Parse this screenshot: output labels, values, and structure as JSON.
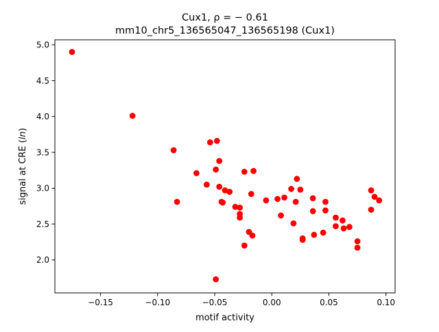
{
  "chart_data": {
    "type": "scatter",
    "title_line1": "Cux1, ρ = − 0.61",
    "title_line2": "mm10_chr5_136565047_136565198 (Cux1)",
    "xlabel": "motif activity",
    "ylabel_prefix": "signal at CRE (",
    "ylabel_italic": "ln",
    "ylabel_suffix": ")",
    "xlim": [
      -0.19,
      0.108
    ],
    "ylim": [
      1.54,
      5.07
    ],
    "xticks": [
      {
        "value": -0.15,
        "label": "−0.15"
      },
      {
        "value": -0.1,
        "label": "−0.10"
      },
      {
        "value": -0.05,
        "label": "−0.05"
      },
      {
        "value": 0.0,
        "label": "0.00"
      },
      {
        "value": 0.05,
        "label": "0.05"
      },
      {
        "value": 0.1,
        "label": "0.10"
      }
    ],
    "yticks": [
      {
        "value": 2.0,
        "label": "2.0"
      },
      {
        "value": 2.5,
        "label": "2.5"
      },
      {
        "value": 3.0,
        "label": "3.0"
      },
      {
        "value": 3.5,
        "label": "3.5"
      },
      {
        "value": 4.0,
        "label": "4.0"
      },
      {
        "value": 4.5,
        "label": "4.5"
      },
      {
        "value": 5.0,
        "label": "5.0"
      }
    ],
    "grid": false,
    "marker_color": "#ff0000",
    "points": [
      {
        "x": -0.175,
        "y": 4.9
      },
      {
        "x": -0.122,
        "y": 4.01
      },
      {
        "x": -0.086,
        "y": 3.53
      },
      {
        "x": -0.083,
        "y": 2.81
      },
      {
        "x": -0.066,
        "y": 3.21
      },
      {
        "x": -0.057,
        "y": 3.05
      },
      {
        "x": -0.054,
        "y": 3.64
      },
      {
        "x": -0.048,
        "y": 3.66
      },
      {
        "x": -0.049,
        "y": 3.26
      },
      {
        "x": -0.046,
        "y": 3.38
      },
      {
        "x": -0.046,
        "y": 3.02
      },
      {
        "x": -0.044,
        "y": 2.81
      },
      {
        "x": -0.043,
        "y": 2.8
      },
      {
        "x": -0.041,
        "y": 2.97
      },
      {
        "x": -0.037,
        "y": 2.95
      },
      {
        "x": -0.032,
        "y": 2.74
      },
      {
        "x": -0.028,
        "y": 2.73
      },
      {
        "x": -0.028,
        "y": 2.64
      },
      {
        "x": -0.028,
        "y": 2.59
      },
      {
        "x": -0.024,
        "y": 3.23
      },
      {
        "x": -0.024,
        "y": 2.2
      },
      {
        "x": -0.02,
        "y": 2.39
      },
      {
        "x": -0.018,
        "y": 2.92
      },
      {
        "x": -0.016,
        "y": 3.24
      },
      {
        "x": -0.017,
        "y": 2.34
      },
      {
        "x": -0.005,
        "y": 2.83
      },
      {
        "x": -0.049,
        "y": 1.73
      },
      {
        "x": 0.005,
        "y": 2.85
      },
      {
        "x": 0.008,
        "y": 2.62
      },
      {
        "x": 0.011,
        "y": 2.87
      },
      {
        "x": 0.017,
        "y": 2.99
      },
      {
        "x": 0.019,
        "y": 2.51
      },
      {
        "x": 0.021,
        "y": 2.81
      },
      {
        "x": 0.022,
        "y": 3.13
      },
      {
        "x": 0.025,
        "y": 2.98
      },
      {
        "x": 0.027,
        "y": 2.3
      },
      {
        "x": 0.027,
        "y": 2.28
      },
      {
        "x": 0.036,
        "y": 2.86
      },
      {
        "x": 0.036,
        "y": 2.68
      },
      {
        "x": 0.037,
        "y": 2.35
      },
      {
        "x": 0.045,
        "y": 2.38
      },
      {
        "x": 0.047,
        "y": 2.81
      },
      {
        "x": 0.047,
        "y": 2.69
      },
      {
        "x": 0.056,
        "y": 2.59
      },
      {
        "x": 0.056,
        "y": 2.47
      },
      {
        "x": 0.062,
        "y": 2.55
      },
      {
        "x": 0.063,
        "y": 2.44
      },
      {
        "x": 0.068,
        "y": 2.46
      },
      {
        "x": 0.075,
        "y": 2.26
      },
      {
        "x": 0.075,
        "y": 2.17
      },
      {
        "x": 0.087,
        "y": 2.97
      },
      {
        "x": 0.087,
        "y": 2.7
      },
      {
        "x": 0.09,
        "y": 2.88
      },
      {
        "x": 0.094,
        "y": 2.83
      }
    ]
  }
}
